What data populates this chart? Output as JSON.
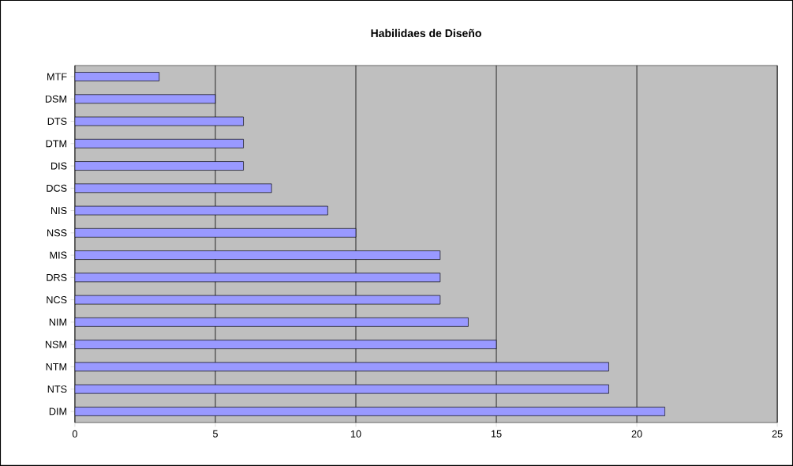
{
  "chart_data": {
    "type": "bar",
    "orientation": "horizontal",
    "title": "Habilidaes de Diseño",
    "categories": [
      "MTF",
      "DSM",
      "DTS",
      "DTM",
      "DIS",
      "DCS",
      "NIS",
      "NSS",
      "MIS",
      "DRS",
      "NCS",
      "NIM",
      "NSM",
      "NTM",
      "NTS",
      "DIM"
    ],
    "values": [
      3,
      5,
      6,
      6,
      6,
      7,
      9,
      10,
      13,
      13,
      13,
      14,
      15,
      19,
      19,
      21
    ],
    "color": "#9999ff",
    "xlim": [
      0,
      25
    ],
    "xticks": [
      0,
      5,
      10,
      15,
      20,
      25
    ],
    "grid": "x"
  }
}
